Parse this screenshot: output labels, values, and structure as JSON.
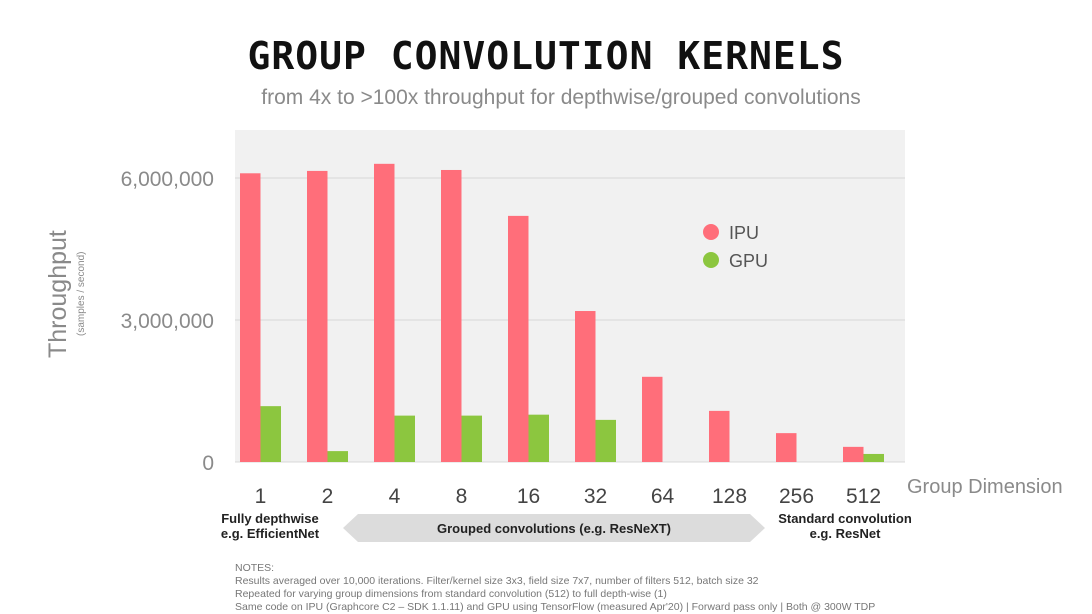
{
  "chart_data": {
    "type": "bar",
    "title": "GROUP CONVOLUTION KERNELS",
    "subtitle": "from 4x to  >100x throughput for depthwise/grouped convolutions",
    "ylabel": "Throughput",
    "ylabel_sub": "(samples / second)",
    "xlabel": "Group Dimension",
    "categories": [
      "1",
      "2",
      "4",
      "8",
      "16",
      "32",
      "64",
      "128",
      "256",
      "512"
    ],
    "ylim": [
      0,
      7000000
    ],
    "yticks": [
      0,
      3000000,
      6000000
    ],
    "ytick_labels": [
      "0",
      "3,000,000",
      "6,000,000"
    ],
    "grid": true,
    "legend_position": "right",
    "series": [
      {
        "name": "IPU",
        "color": "#ff6e7a",
        "values": [
          6100000,
          6150000,
          6300000,
          6170000,
          5200000,
          3190000,
          1800000,
          1080000,
          610000,
          320000
        ]
      },
      {
        "name": "GPU",
        "color": "#8cc63f",
        "values": [
          1180000,
          230000,
          980000,
          980000,
          1000000,
          890000,
          0,
          0,
          0,
          170000
        ]
      }
    ],
    "annotations": {
      "left": [
        "Fully depthwise",
        "e.g. EfficientNet"
      ],
      "middle": "Grouped convolutions (e.g. ResNeXT)",
      "right": [
        "Standard convolution",
        "e.g. ResNet"
      ]
    }
  },
  "notes": {
    "heading": "NOTES:",
    "lines": [
      "Results averaged over 10,000 iterations. Filter/kernel size 3x3, field size 7x7, number of filters 512, batch size 32",
      "Repeated for varying group dimensions from standard convolution (512) to full depth-wise (1)",
      "Same code on IPU (Graphcore C2 – SDK 1.1.11) and GPU using TensorFlow (measured Apr'20) | Forward pass only | Both @ 300W TDP"
    ]
  }
}
